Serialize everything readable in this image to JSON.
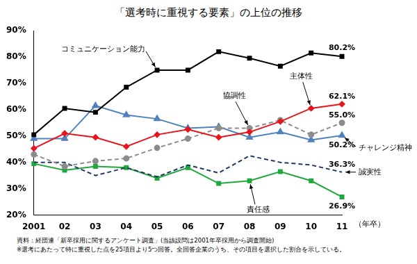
{
  "chart_data": {
    "type": "line",
    "title": "「選考時に重視する要素」の上位の推移",
    "x_label": "（年卒）",
    "notes": [
      "資料：経団連「新卒採用に関するアンケート調査」(当該設問は2001年卒採用から調査開始)",
      "※選考にあたって特に重視した点を25項目より5つ回答。全回答企業のうち、その項目を選択した割合を示している。"
    ],
    "categories": [
      "2001",
      "02",
      "03",
      "04",
      "05",
      "06",
      "07",
      "08",
      "09",
      "10",
      "11"
    ],
    "series": [
      {
        "name": "コミュニケーション能力",
        "color": "#000000",
        "marker": "square",
        "line_style": "solid",
        "values": [
          50.5,
          60.5,
          59,
          68.5,
          75,
          75,
          82,
          79.5,
          76.5,
          81.5,
          80.2
        ],
        "value_labels": [
          null,
          null,
          null,
          null,
          null,
          null,
          null,
          null,
          null,
          null,
          "80.2%"
        ]
      },
      {
        "name": "主体性",
        "color": "#e8141c",
        "marker": "diamond",
        "line_style": "solid",
        "values": [
          45.3,
          51,
          49.5,
          46,
          50.5,
          52.5,
          49.5,
          51.5,
          55.5,
          60.5,
          62.1
        ],
        "value_labels": [
          null,
          null,
          null,
          null,
          null,
          null,
          null,
          null,
          null,
          null,
          "62.1%"
        ]
      },
      {
        "name": "協調性",
        "color": "#8c8c8c",
        "marker": "circle",
        "line_style": "dashed",
        "values": [
          43,
          38.5,
          40.5,
          41.5,
          45.5,
          49,
          53,
          53,
          56,
          50.5,
          55.0
        ],
        "value_labels": [
          null,
          null,
          null,
          null,
          null,
          null,
          null,
          null,
          null,
          null,
          "55.0%"
        ]
      },
      {
        "name": "チャレンジ精神",
        "color": "#4f81bd",
        "marker": "triangle",
        "line_style": "solid",
        "values": [
          49,
          49,
          61.5,
          58,
          56.5,
          53,
          53.5,
          49.5,
          51.5,
          48.5,
          50.2
        ],
        "value_labels": [
          null,
          null,
          null,
          null,
          null,
          null,
          null,
          null,
          null,
          null,
          "50.2%"
        ]
      },
      {
        "name": "誠実性",
        "color": "#1f3864",
        "marker": "none",
        "line_style": "dashed",
        "values": [
          40,
          40,
          35,
          38,
          34.5,
          39,
          36,
          42.5,
          40,
          39,
          36.3
        ],
        "value_labels": [
          null,
          null,
          null,
          null,
          null,
          null,
          null,
          null,
          null,
          null,
          "36.3%"
        ]
      },
      {
        "name": "責任感",
        "color": "#1fa83c",
        "marker": "square",
        "line_style": "solid",
        "values": [
          39.5,
          37,
          38.5,
          38,
          34,
          38,
          32,
          33,
          36.5,
          33,
          26.9
        ],
        "value_labels": [
          null,
          null,
          null,
          null,
          null,
          null,
          null,
          null,
          null,
          null,
          "26.9%"
        ]
      }
    ],
    "ylim": [
      20,
      90
    ],
    "yticks": [
      {
        "value": 20,
        "label": "20%"
      },
      {
        "value": 30,
        "label": "30%"
      },
      {
        "value": 40,
        "label": "40%"
      },
      {
        "value": 50,
        "label": "50%"
      },
      {
        "value": 60,
        "label": "60%"
      },
      {
        "value": 70,
        "label": "70%"
      },
      {
        "value": 80,
        "label": "80%"
      },
      {
        "value": 90,
        "label": "90%"
      }
    ],
    "grid": false,
    "data_labels": true
  }
}
